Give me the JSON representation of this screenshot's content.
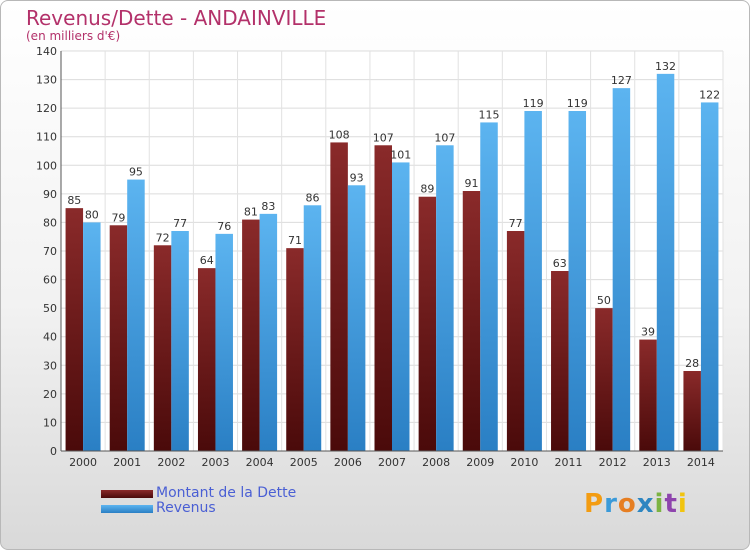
{
  "title": "Revenus/Dette - ANDAINVILLE",
  "subtitle": "(en milliers d'€)",
  "legend": {
    "items": [
      {
        "label": "Montant de la Dette",
        "color": "#6b1a1a"
      },
      {
        "label": "Revenus",
        "color": "#3f9be0"
      }
    ]
  },
  "logo": {
    "text": "Proxiti",
    "letters": [
      {
        "ch": "P",
        "color": "#f39c12"
      },
      {
        "ch": "r",
        "color": "#3a9ad9"
      },
      {
        "ch": "o",
        "color": "#e67e22"
      },
      {
        "ch": "x",
        "color": "#2e86c1"
      },
      {
        "ch": "i",
        "color": "#7cb342"
      },
      {
        "ch": "t",
        "color": "#8e44ad"
      },
      {
        "ch": "i",
        "color": "#f1c40f"
      }
    ]
  },
  "chart_data": {
    "type": "bar",
    "categories": [
      "2000",
      "2001",
      "2002",
      "2003",
      "2004",
      "2005",
      "2006",
      "2007",
      "2008",
      "2009",
      "2010",
      "2011",
      "2012",
      "2013",
      "2014"
    ],
    "series": [
      {
        "name": "Montant de la Dette",
        "color": "#7a1e1e",
        "values": [
          85,
          79,
          72,
          64,
          81,
          71,
          108,
          107,
          89,
          91,
          77,
          63,
          50,
          39,
          28
        ]
      },
      {
        "name": "Revenus",
        "color": "#4aa6e8",
        "values": [
          80,
          95,
          77,
          76,
          83,
          86,
          93,
          101,
          107,
          115,
          119,
          119,
          127,
          132,
          122
        ]
      }
    ],
    "ylim": [
      0,
      140
    ],
    "yticks": [
      0,
      10,
      20,
      30,
      40,
      50,
      60,
      70,
      80,
      90,
      100,
      110,
      120,
      130,
      140
    ],
    "grid": true,
    "legend_position": "bottom-left"
  }
}
